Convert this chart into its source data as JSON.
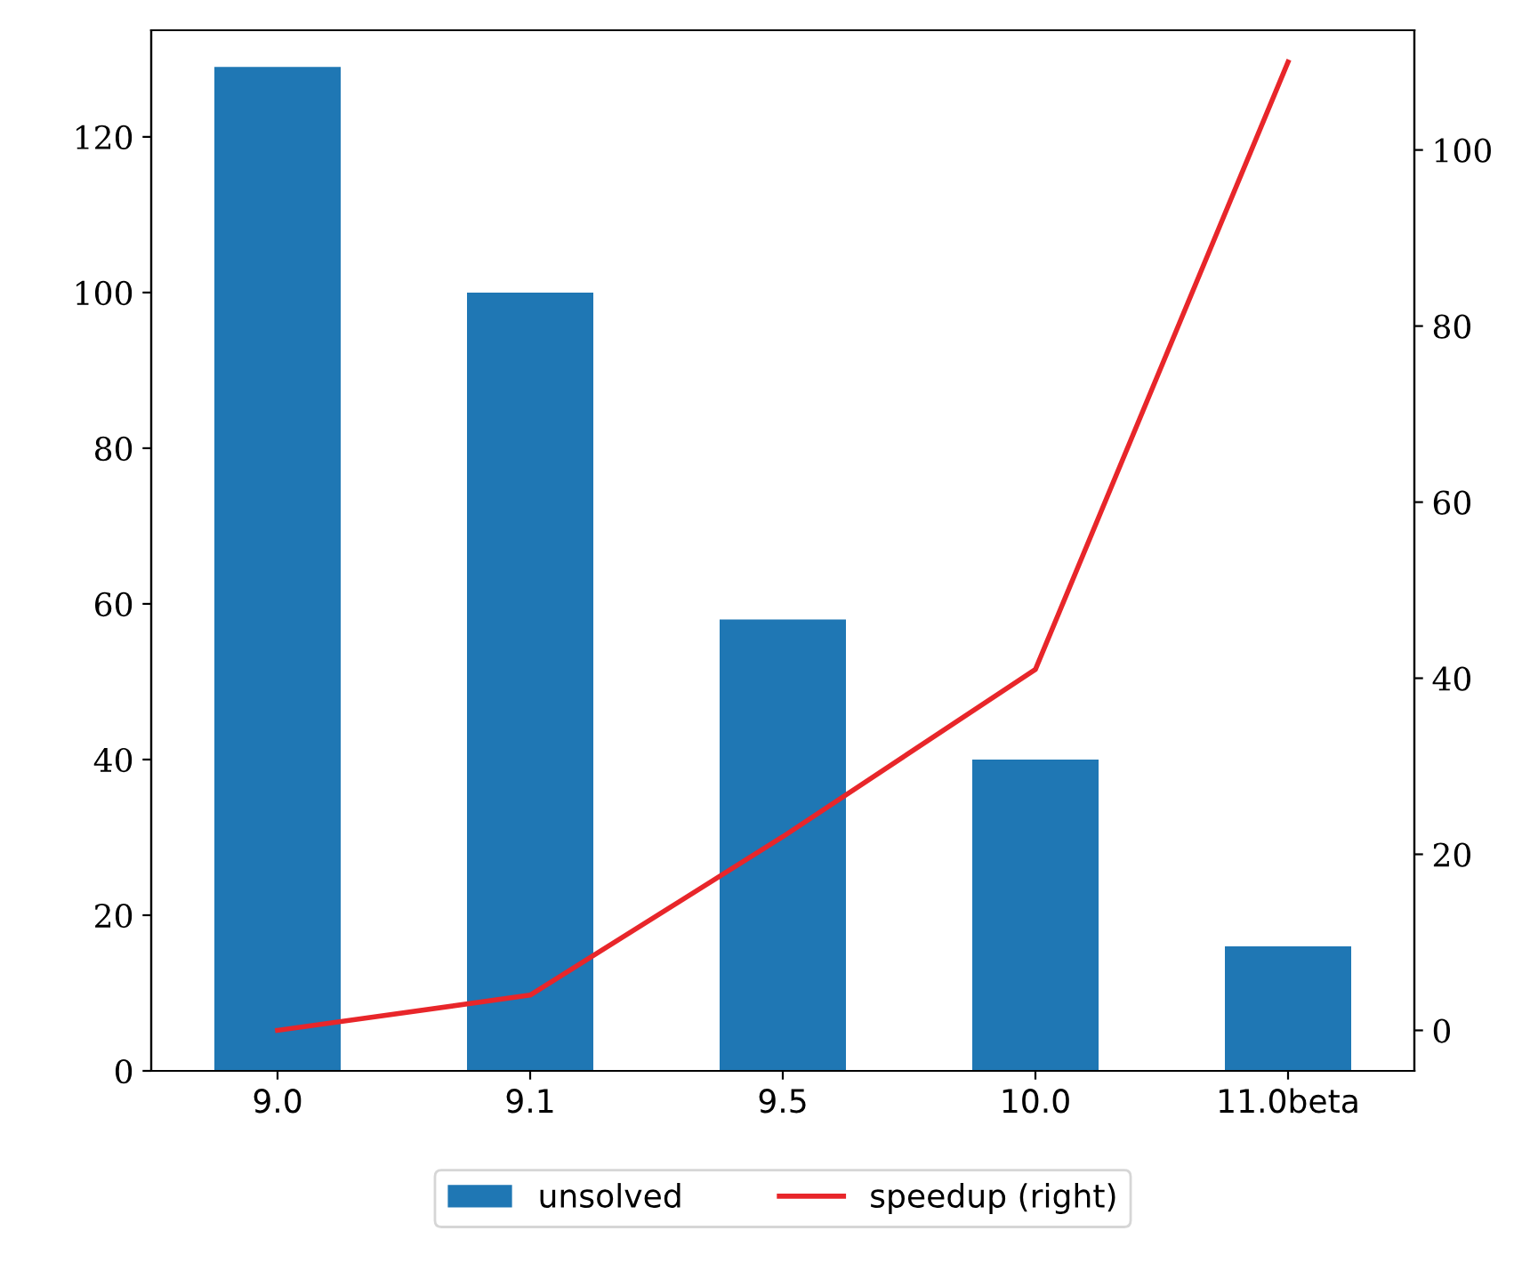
{
  "chart_data": {
    "type": "bar",
    "categories": [
      "9.0",
      "9.1",
      "9.5",
      "10.0",
      "11.0beta"
    ],
    "series": [
      {
        "name": "unsolved",
        "color": "#1f77b4",
        "values": [
          129,
          100,
          58,
          40,
          16
        ]
      },
      {
        "name": "speedup (right)",
        "type": "line",
        "axis": "y2",
        "color": "#e8262a",
        "values": [
          0,
          4,
          22,
          41,
          110
        ]
      }
    ],
    "ylim": [
      0,
      133.7
    ],
    "yticks": [
      0,
      20,
      40,
      60,
      80,
      100,
      120
    ],
    "y2lim": [
      -4.6,
      113.6
    ],
    "y2ticks": [
      0,
      20,
      40,
      60,
      80,
      100
    ],
    "legend": "bottom",
    "grid": false,
    "marker": "none",
    "line_style": "solid"
  }
}
